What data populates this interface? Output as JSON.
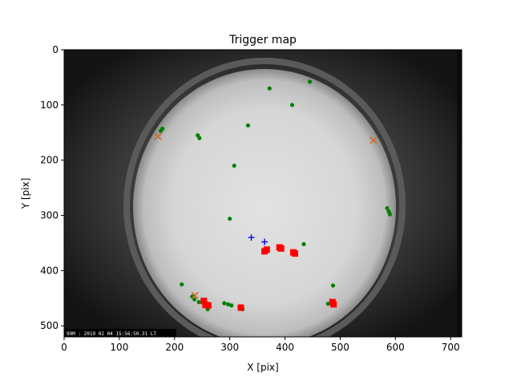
{
  "chart_data": {
    "type": "scatter",
    "title": "Trigger map",
    "xlabel": "X [pix]",
    "ylabel": "Y [pix]",
    "xlim": [
      0,
      720
    ],
    "ylim": [
      520,
      0
    ],
    "y_inverted": true,
    "xticks": [
      0,
      100,
      200,
      300,
      400,
      500,
      600,
      700
    ],
    "yticks": [
      0,
      100,
      200,
      300,
      400,
      500
    ],
    "grid": false,
    "legend": "none",
    "background": "grayscale all-sky camera image",
    "image_timestamp": "99M : 2019 02 04  15:56:50.31  LT",
    "series": [
      {
        "marker": "dot",
        "color": "#008000",
        "points": [
          [
            372,
            70
          ],
          [
            445,
            58
          ],
          [
            413,
            100
          ],
          [
            333,
            137
          ],
          [
            178,
            143
          ],
          [
            175,
            147
          ],
          [
            242,
            155
          ],
          [
            245,
            160
          ],
          [
            308,
            210
          ],
          [
            300,
            306
          ],
          [
            585,
            287
          ],
          [
            588,
            293
          ],
          [
            590,
            298
          ],
          [
            434,
            352
          ],
          [
            213,
            425
          ],
          [
            487,
            427
          ],
          [
            232,
            447
          ],
          [
            236,
            452
          ],
          [
            244,
            457
          ],
          [
            260,
            470
          ],
          [
            290,
            459
          ],
          [
            297,
            461
          ],
          [
            303,
            463
          ],
          [
            323,
            470
          ],
          [
            478,
            460
          ]
        ]
      },
      {
        "marker": "plus",
        "color": "#0000ff",
        "points": [
          [
            339,
            340
          ],
          [
            363,
            348
          ]
        ]
      },
      {
        "marker": "square",
        "color": "#ff0000",
        "points": [
          [
            363,
            365
          ],
          [
            367,
            362
          ],
          [
            393,
            360
          ],
          [
            390,
            358
          ],
          [
            415,
            367
          ],
          [
            418,
            369
          ],
          [
            253,
            455
          ],
          [
            256,
            462
          ],
          [
            261,
            463
          ],
          [
            320,
            467
          ],
          [
            486,
            457
          ],
          [
            488,
            461
          ]
        ]
      },
      {
        "marker": "x",
        "color": "#d2691e",
        "points": [
          [
            170,
            157
          ],
          [
            560,
            164
          ],
          [
            237,
            445
          ]
        ]
      }
    ]
  }
}
